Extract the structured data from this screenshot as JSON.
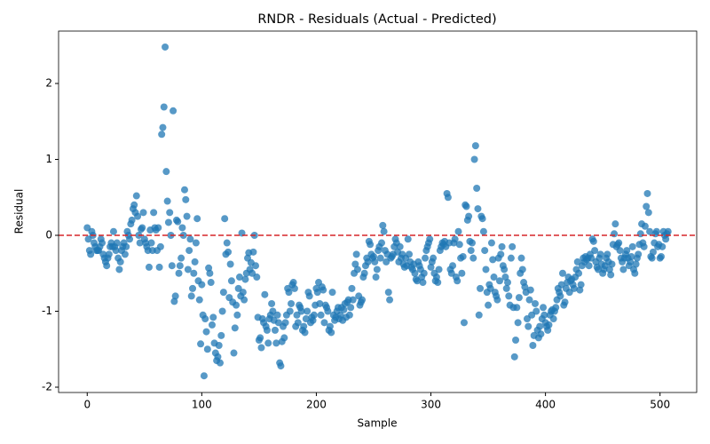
{
  "chart_data": {
    "type": "scatter",
    "title": "RNDR - Residuals (Actual - Predicted)",
    "x_label": "Sample",
    "y_label": "Residual",
    "xlim": [
      -25,
      532
    ],
    "ylim": [
      -2.07,
      2.69
    ],
    "xticks": [
      0,
      100,
      200,
      300,
      400,
      500
    ],
    "yticks": [
      -2,
      -1,
      0,
      1,
      2
    ],
    "grid": false,
    "reference_line": {
      "value": 0,
      "color": "#d62728",
      "style": "dashed"
    },
    "series": [
      {
        "color": "#1f77b4",
        "opacity": 0.75,
        "x": [
          0,
          1,
          2,
          3,
          4,
          5,
          6,
          7,
          8,
          9,
          10,
          11,
          12,
          13,
          14,
          15,
          16,
          17,
          18,
          19,
          20,
          21,
          22,
          23,
          24,
          25,
          26,
          27,
          28,
          29,
          30,
          31,
          32,
          33,
          34,
          35,
          36,
          37,
          38,
          39,
          40,
          41,
          42,
          43,
          44,
          45,
          46,
          47,
          48,
          49,
          50,
          51,
          52,
          53,
          54,
          55,
          56,
          57,
          58,
          59,
          60,
          61,
          62,
          63,
          64,
          65,
          66,
          67,
          68,
          69,
          70,
          71,
          72,
          73,
          74,
          75,
          76,
          77,
          78,
          79,
          80,
          81,
          82,
          83,
          84,
          85,
          86,
          87,
          88,
          89,
          90,
          91,
          92,
          93,
          94,
          95,
          96,
          97,
          98,
          99,
          100,
          101,
          102,
          103,
          104,
          105,
          106,
          107,
          108,
          109,
          110,
          111,
          112,
          113,
          114,
          115,
          116,
          117,
          118,
          119,
          120,
          121,
          122,
          123,
          124,
          125,
          126,
          127,
          128,
          129,
          130,
          131,
          132,
          133,
          134,
          135,
          136,
          137,
          138,
          139,
          140,
          141,
          142,
          143,
          144,
          145,
          146,
          147,
          148,
          149,
          150,
          151,
          152,
          153,
          154,
          155,
          156,
          157,
          158,
          159,
          160,
          161,
          162,
          163,
          164,
          165,
          166,
          167,
          168,
          169,
          170,
          171,
          172,
          173,
          174,
          175,
          176,
          177,
          178,
          179,
          180,
          181,
          182,
          183,
          184,
          185,
          186,
          187,
          188,
          189,
          190,
          191,
          192,
          193,
          194,
          195,
          196,
          197,
          198,
          199,
          200,
          201,
          202,
          203,
          204,
          205,
          206,
          207,
          208,
          209,
          210,
          211,
          212,
          213,
          214,
          215,
          216,
          217,
          218,
          219,
          220,
          221,
          222,
          223,
          224,
          225,
          226,
          227,
          228,
          229,
          230,
          231,
          232,
          233,
          234,
          235,
          236,
          237,
          238,
          239,
          240,
          241,
          242,
          243,
          244,
          245,
          246,
          247,
          248,
          249,
          250,
          251,
          252,
          253,
          254,
          255,
          256,
          257,
          258,
          259,
          260,
          261,
          262,
          263,
          264,
          265,
          266,
          267,
          268,
          269,
          270,
          271,
          272,
          273,
          274,
          275,
          276,
          277,
          278,
          279,
          280,
          281,
          282,
          283,
          284,
          285,
          286,
          287,
          288,
          289,
          290,
          291,
          292,
          293,
          294,
          295,
          296,
          297,
          298,
          299,
          300,
          301,
          302,
          303,
          304,
          305,
          306,
          307,
          308,
          309,
          310,
          311,
          312,
          313,
          314,
          315,
          316,
          317,
          318,
          319,
          320,
          321,
          322,
          323,
          324,
          325,
          326,
          327,
          328,
          329,
          330,
          331,
          332,
          333,
          334,
          335,
          336,
          337,
          338,
          339,
          340,
          341,
          342,
          343,
          344,
          345,
          346,
          347,
          348,
          349,
          350,
          351,
          352,
          353,
          354,
          355,
          356,
          357,
          358,
          359,
          360,
          361,
          362,
          363,
          364,
          365,
          366,
          367,
          368,
          369,
          370,
          371,
          372,
          373,
          374,
          375,
          376,
          377,
          378,
          379,
          380,
          381,
          382,
          383,
          384,
          385,
          386,
          387,
          388,
          389,
          390,
          391,
          392,
          393,
          394,
          395,
          396,
          397,
          398,
          399,
          400,
          401,
          402,
          403,
          404,
          405,
          406,
          407,
          408,
          409,
          410,
          411,
          412,
          413,
          414,
          415,
          416,
          417,
          418,
          419,
          420,
          421,
          422,
          423,
          424,
          425,
          426,
          427,
          428,
          429,
          430,
          431,
          432,
          433,
          434,
          435,
          436,
          437,
          438,
          439,
          440,
          441,
          442,
          443,
          444,
          445,
          446,
          447,
          448,
          449,
          450,
          451,
          452,
          453,
          454,
          455,
          456,
          457,
          458,
          459,
          460,
          461,
          462,
          463,
          464,
          465,
          466,
          467,
          468,
          469,
          470,
          471,
          472,
          473,
          474,
          475,
          476,
          477,
          478,
          479,
          480,
          481,
          482,
          483,
          484,
          485,
          486,
          487,
          488,
          489,
          490,
          491,
          492,
          493,
          494,
          495,
          496,
          497,
          498,
          499,
          500,
          501,
          502,
          503,
          504,
          505,
          506,
          507
        ],
        "values": [
          0.1,
          -0.05,
          -0.2,
          -0.25,
          0.05,
          0,
          -0.1,
          -0.15,
          -0.2,
          -0.2,
          -0.2,
          -0.15,
          -0.05,
          -0.1,
          -0.25,
          -0.3,
          -0.35,
          -0.4,
          -0.3,
          -0.25,
          -0.15,
          -0.1,
          -0.15,
          0.05,
          -0.15,
          -0.2,
          -0.1,
          -0.3,
          -0.45,
          -0.35,
          -0.2,
          -0.15,
          -0.1,
          -0.25,
          -0.15,
          0.05,
          0,
          -0.05,
          0.15,
          0.2,
          0.35,
          0.4,
          0.3,
          0.52,
          0.25,
          0,
          -0.1,
          0.08,
          0.1,
          0.3,
          -0.05,
          -0.1,
          -0.15,
          -0.2,
          -0.42,
          0.07,
          -0.1,
          -0.2,
          0.3,
          0.1,
          0.07,
          -0.2,
          0.1,
          -0.42,
          -0.15,
          1.33,
          1.42,
          1.69,
          2.48,
          0.84,
          0.45,
          0.17,
          0.3,
          0,
          -0.4,
          1.64,
          -0.87,
          -0.8,
          0.2,
          0.18,
          -0.5,
          -0.4,
          -0.3,
          0.1,
          0,
          0.6,
          0.47,
          0.25,
          -0.45,
          -0.2,
          -0.05,
          -0.8,
          -0.7,
          -0.5,
          -0.35,
          -0.1,
          0.22,
          -0.6,
          -0.85,
          -1.43,
          -0.65,
          -1.05,
          -1.85,
          -1.1,
          -1.27,
          -1.5,
          -0.43,
          -0.5,
          -0.62,
          -1.18,
          -1.08,
          -1.42,
          -1.55,
          -1.65,
          -1.6,
          -1.45,
          -1.68,
          -1.32,
          -1,
          -0.75,
          0.22,
          -0.25,
          -0.1,
          -0.22,
          -0.82,
          -0.38,
          -0.6,
          -0.88,
          -1.55,
          -1.22,
          -0.92,
          -1.05,
          -0.7,
          -0.55,
          -0.8,
          0.03,
          -0.75,
          -0.85,
          -0.58,
          -0.5,
          -0.3,
          -0.23,
          -0.45,
          -0.36,
          -0.5,
          -0.22,
          0,
          -0.4,
          -0.55,
          -1.08,
          -1.38,
          -1.35,
          -1.48,
          -1.1,
          -1.15,
          -0.78,
          -1.2,
          -1.25,
          -1.42,
          -1.1,
          -1.05,
          -0.9,
          -1,
          -1.12,
          -1.25,
          -1.42,
          -1.05,
          -1.15,
          -1.68,
          -1.72,
          -1.4,
          -1.2,
          -1.35,
          -1.15,
          -1.05,
          -0.7,
          -0.75,
          -1,
          -0.9,
          -0.65,
          -0.62,
          -0.7,
          -1.2,
          -1.05,
          -1.15,
          -0.92,
          -0.95,
          -1,
          -1.25,
          -1.2,
          -1.28,
          -1.1,
          -1,
          -0.75,
          -0.8,
          -1.15,
          -1.08,
          -1.12,
          -1.05,
          -0.92,
          -0.7,
          -0.75,
          -0.62,
          -0.9,
          -1.05,
          -0.68,
          -0.72,
          -1.15,
          -0.92,
          -0.95,
          -1,
          -1.25,
          -1.2,
          -1.28,
          -0.75,
          -1.05,
          -1.12,
          -1.08,
          -1,
          -0.95,
          -1.1,
          -1.05,
          -0.95,
          -1.12,
          -0.98,
          -0.9,
          -1.08,
          -0.88,
          -0.85,
          -1.05,
          -0.95,
          -0.7,
          -0.85,
          -0.5,
          -0.38,
          -0.25,
          -0.45,
          -0.8,
          -0.92,
          -0.88,
          -0.85,
          -0.55,
          -0.5,
          -0.4,
          -0.3,
          -0.35,
          -0.08,
          -0.12,
          -0.25,
          -0.3,
          -0.28,
          -0.35,
          -0.55,
          -0.45,
          -0.2,
          -0.15,
          -0.3,
          -0.1,
          0.13,
          0.05,
          -0.2,
          -0.35,
          -0.25,
          -0.75,
          -0.85,
          -0.3,
          -0.28,
          -0.25,
          -0.15,
          -0.05,
          -0.1,
          -0.22,
          -0.35,
          -0.15,
          -0.3,
          -0.25,
          -0.38,
          -0.42,
          -0.3,
          -0.4,
          -0.05,
          -0.25,
          -0.35,
          -0.42,
          -0.45,
          -0.38,
          -0.5,
          -0.58,
          -0.6,
          -0.35,
          -0.4,
          -0.45,
          -0.55,
          -0.62,
          -0.5,
          -0.3,
          -0.2,
          -0.15,
          -0.1,
          -0.05,
          -0.42,
          -0.35,
          -0.3,
          -0.5,
          -0.6,
          -0.55,
          -0.62,
          -0.45,
          -0.2,
          -0.15,
          -0.1,
          -0.12,
          -0.08,
          -0.15,
          0.55,
          0.5,
          -0.1,
          -0.45,
          -0.5,
          -0.4,
          -0.1,
          -0.05,
          -0.55,
          -0.6,
          0.05,
          -0.12,
          -0.3,
          -0.5,
          -0.28,
          -1.15,
          0.4,
          0.38,
          0.2,
          0.25,
          -0.08,
          -0.2,
          -0.1,
          -0.3,
          1,
          1.18,
          0.62,
          0.35,
          -1.05,
          -0.7,
          0.25,
          0.22,
          0.05,
          -0.2,
          -0.45,
          -0.75,
          -0.92,
          -0.65,
          -0.7,
          -0.1,
          -0.32,
          -0.55,
          -0.75,
          -0.8,
          -0.85,
          -0.3,
          -0.6,
          -0.25,
          -0.15,
          -0.4,
          -0.45,
          -0.55,
          -0.7,
          -0.62,
          -0.8,
          -0.92,
          -0.3,
          -0.15,
          -0.95,
          -1.6,
          -1.38,
          -0.95,
          -1.15,
          -0.82,
          -0.5,
          -0.3,
          -0.45,
          -0.62,
          -0.68,
          -0.75,
          -1.1,
          -1.2,
          -0.85,
          -0.72,
          -1.05,
          -1.45,
          -1.32,
          -0.9,
          -1,
          -1.25,
          -1.35,
          -1.2,
          -1.3,
          -1.1,
          -0.95,
          -1.05,
          -1.15,
          -1.2,
          -1.25,
          -1.18,
          -1.05,
          -1,
          -0.98,
          -1.1,
          -1,
          -0.95,
          -0.85,
          -0.7,
          -0.75,
          -0.8,
          -0.65,
          -0.5,
          -0.92,
          -0.88,
          -0.7,
          -0.62,
          -0.55,
          -0.75,
          -0.6,
          -0.58,
          -0.65,
          -0.7,
          -0.55,
          -0.45,
          -0.35,
          -0.5,
          -0.72,
          -0.65,
          -0.4,
          -0.3,
          -0.35,
          -0.28,
          -0.32,
          -0.3,
          -0.4,
          -0.25,
          -0.3,
          -0.05,
          -0.08,
          -0.2,
          -0.35,
          -0.42,
          -0.45,
          -0.3,
          -0.25,
          -0.38,
          -0.5,
          -0.45,
          -0.4,
          -0.3,
          -0.25,
          -0.35,
          -0.45,
          -0.52,
          -0.38,
          -0.12,
          0.02,
          0.15,
          -0.15,
          -0.12,
          -0.1,
          -0.2,
          -0.3,
          -0.35,
          -0.45,
          -0.3,
          -0.25,
          -0.2,
          -0.3,
          -0.4,
          -0.35,
          -0.28,
          -0.15,
          -0.45,
          -0.5,
          -0.38,
          -0.3,
          -0.25,
          -0.12,
          0.02,
          0.15,
          -0.1,
          -0.15,
          0.12,
          0.38,
          0.55,
          0.3,
          0.05,
          -0.28,
          -0.3,
          -0.22,
          -0.1,
          0.02,
          0.05,
          -0.15,
          -0.12,
          -0.3,
          -0.28,
          -0.15,
          0.05,
          0,
          -0.05,
          0.02,
          0.05
        ]
      }
    ]
  }
}
